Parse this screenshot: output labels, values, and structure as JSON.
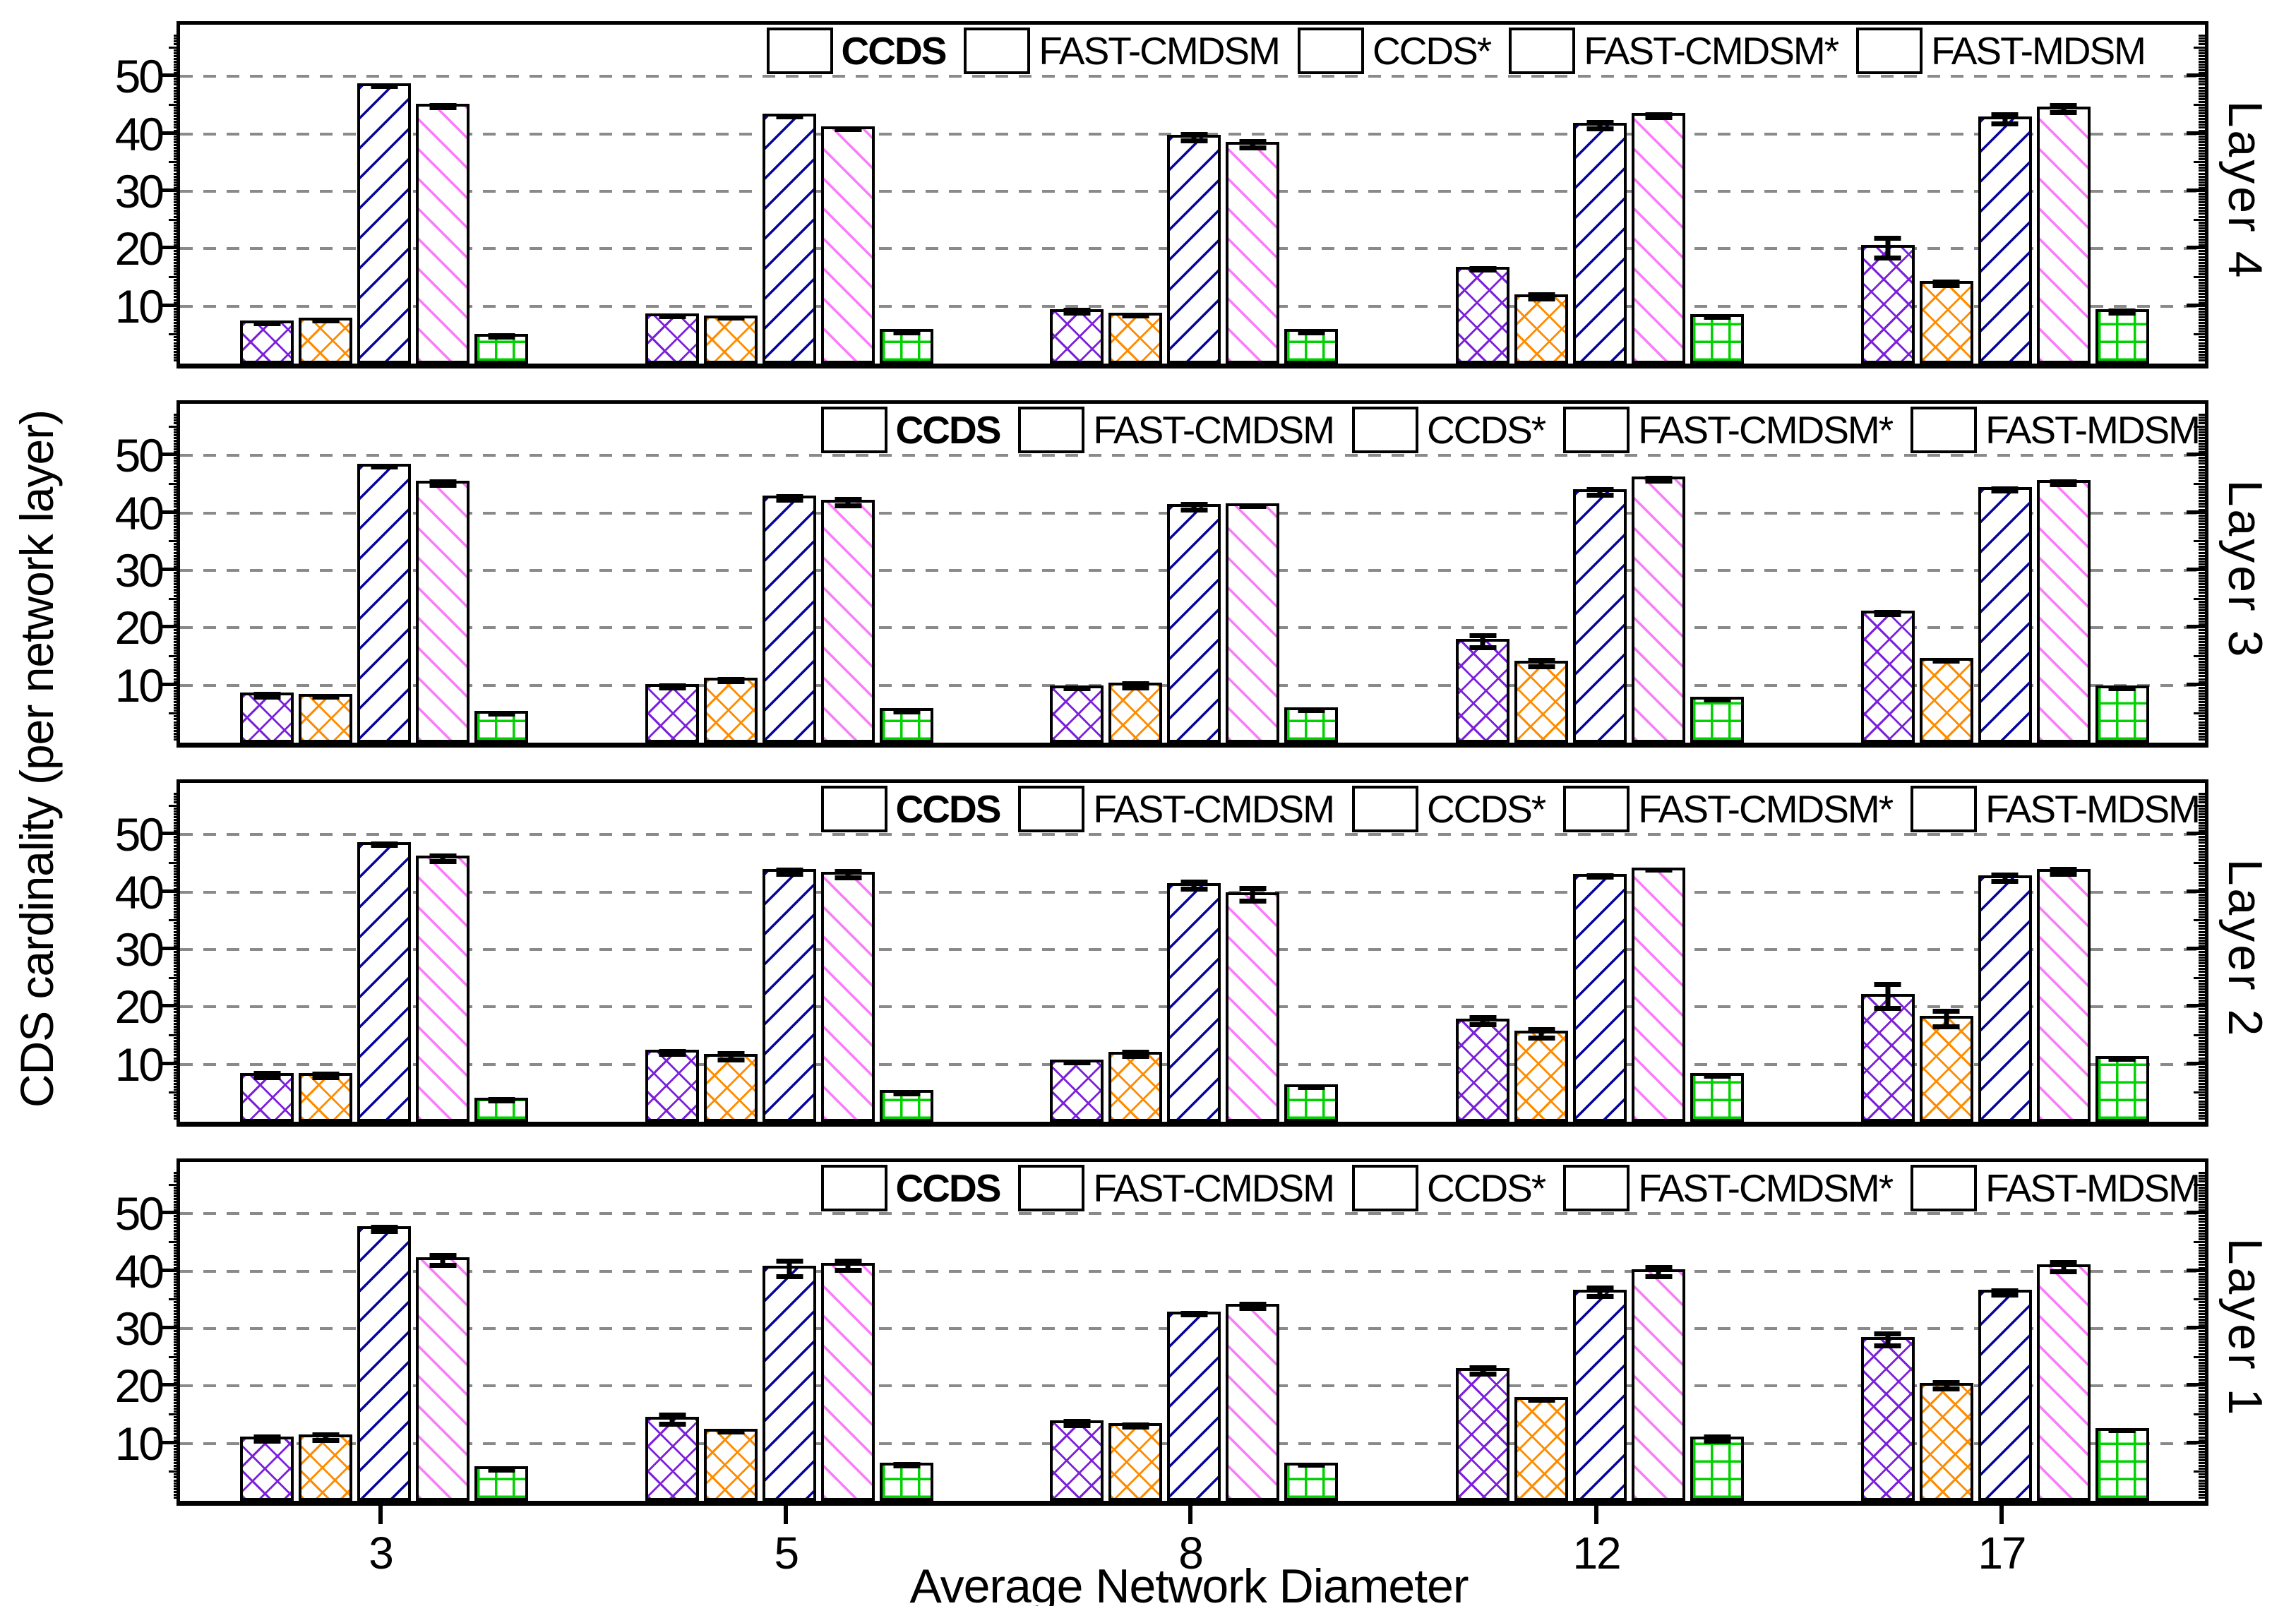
{
  "y_axis": {
    "label": "CDS cardinality (per network layer)",
    "ticks": [
      10,
      20,
      30,
      40,
      50
    ],
    "max": 59
  },
  "x_axis": {
    "label": "Average Network Diameter",
    "categories": [
      "3",
      "5",
      "8",
      "12",
      "17"
    ]
  },
  "legend": {
    "entries": [
      "CCDS",
      "FAST-CMDSM",
      "CCDS*",
      "FAST-CMDSM*",
      "FAST-MDSM"
    ],
    "position": "top-right inside each panel"
  },
  "colors": {
    "ccds": "#7C21DB",
    "fast_cmdsm": "#FF8C00",
    "ccds_star": "#06069C",
    "fast_cmdsm_star": "#FB7BFB",
    "fast_mdsm": "#00D200",
    "gridline": "#8a8a8a",
    "axis": "#000000"
  },
  "chart_data": {
    "type": "bar",
    "title": "",
    "xlabel": "Average Network Diameter",
    "ylabel": "CDS cardinality (per network layer)",
    "x_categories": [
      "3",
      "5",
      "8",
      "12",
      "17"
    ],
    "ylim": [
      0,
      59
    ],
    "yticks": [
      10,
      20,
      30,
      40,
      50
    ],
    "grid": "horizontal-dashed",
    "error_bars": true,
    "series_meta": [
      {
        "name": "CCDS",
        "color": "#7C21DB",
        "pattern": "cross",
        "bold_legend": true
      },
      {
        "name": "FAST-CMDSM",
        "color": "#FF8C00",
        "pattern": "cross",
        "bold_legend": false
      },
      {
        "name": "CCDS*",
        "color": "#06069C",
        "pattern": "diag-up",
        "bold_legend": false
      },
      {
        "name": "FAST-CMDSM*",
        "color": "#FB7BFB",
        "pattern": "diag-down",
        "bold_legend": false
      },
      {
        "name": "FAST-MDSM",
        "color": "#00D200",
        "pattern": "grid",
        "bold_legend": false
      }
    ],
    "panels": [
      {
        "label": "Layer 4",
        "series": [
          {
            "name": "CCDS",
            "values": [
              7.5,
              8.7,
              9.5,
              16.9,
              20.6
            ],
            "errors": [
              0.4,
              0.5,
              0.7,
              0.6,
              2.2
            ]
          },
          {
            "name": "FAST-CMDSM",
            "values": [
              8.0,
              8.4,
              8.9,
              12.1,
              14.4
            ],
            "errors": [
              0.5,
              0.4,
              0.5,
              0.8,
              0.7
            ]
          },
          {
            "name": "CCDS*",
            "values": [
              48.8,
              43.5,
              39.8,
              41.9,
              43.0
            ],
            "errors": [
              0.4,
              0.5,
              1.0,
              1.0,
              1.2
            ]
          },
          {
            "name": "FAST-CMDSM*",
            "values": [
              45.2,
              41.3,
              38.6,
              43.6,
              44.8
            ],
            "errors": [
              0.6,
              0.4,
              1.0,
              0.7,
              1.0
            ]
          },
          {
            "name": "FAST-MDSM",
            "values": [
              5.2,
              6.0,
              6.0,
              8.6,
              9.5
            ],
            "errors": [
              0.3,
              0.3,
              0.3,
              0.5,
              0.6
            ]
          }
        ]
      },
      {
        "label": "Layer 3",
        "series": [
          {
            "name": "CCDS",
            "values": [
              8.7,
              10.2,
              10.0,
              18.1,
              23.0
            ],
            "errors": [
              0.7,
              0.6,
              0.5,
              1.5,
              0.6
            ]
          },
          {
            "name": "FAST-CMDSM",
            "values": [
              8.5,
              11.3,
              10.4,
              14.3,
              14.8
            ],
            "errors": [
              0.5,
              0.6,
              0.8,
              1.0,
              0.5
            ]
          },
          {
            "name": "CCDS*",
            "values": [
              48.6,
              43.0,
              41.5,
              44.1,
              44.5
            ],
            "errors": [
              0.5,
              0.7,
              0.9,
              0.9,
              0.6
            ]
          },
          {
            "name": "FAST-CMDSM*",
            "values": [
              45.6,
              42.3,
              41.7,
              46.3,
              45.7
            ],
            "errors": [
              0.7,
              1.0,
              0.5,
              0.7,
              0.7
            ]
          },
          {
            "name": "FAST-MDSM",
            "values": [
              5.5,
              6.0,
              6.1,
              8.0,
              10.0
            ],
            "errors": [
              0.4,
              0.3,
              0.5,
              0.4,
              0.5
            ]
          }
        ]
      },
      {
        "label": "Layer 2",
        "series": [
          {
            "name": "CCDS",
            "values": [
              8.5,
              12.5,
              10.8,
              18.0,
              22.3
            ],
            "errors": [
              0.8,
              0.7,
              0.4,
              1.0,
              2.5
            ]
          },
          {
            "name": "FAST-CMDSM",
            "values": [
              8.5,
              11.8,
              12.2,
              15.8,
              18.4
            ],
            "errors": [
              0.7,
              1.0,
              0.8,
              1.2,
              1.8
            ]
          },
          {
            "name": "CCDS*",
            "values": [
              48.7,
              44.0,
              41.6,
              43.2,
              42.9
            ],
            "errors": [
              0.3,
              0.8,
              1.0,
              0.5,
              1.0
            ]
          },
          {
            "name": "FAST-CMDSM*",
            "values": [
              46.3,
              43.5,
              40.0,
              44.3,
              44.0
            ],
            "errors": [
              0.9,
              1.0,
              1.5,
              0.4,
              0.9
            ]
          },
          {
            "name": "FAST-MDSM",
            "values": [
              4.2,
              5.5,
              6.5,
              8.5,
              11.4
            ],
            "errors": [
              0.3,
              0.3,
              0.4,
              0.4,
              0.4
            ]
          }
        ]
      },
      {
        "label": "Layer 1",
        "series": [
          {
            "name": "CCDS",
            "values": [
              11.2,
              14.6,
              14.0,
              23.1,
              28.5
            ],
            "errors": [
              0.8,
              1.2,
              0.8,
              1.0,
              1.5
            ]
          },
          {
            "name": "FAST-CMDSM",
            "values": [
              11.5,
              12.5,
              13.5,
              18.1,
              20.5
            ],
            "errors": [
              0.9,
              0.5,
              0.6,
              0.4,
              1.0
            ]
          },
          {
            "name": "CCDS*",
            "values": [
              47.8,
              40.9,
              33.0,
              36.8,
              36.7
            ],
            "errors": [
              0.8,
              1.8,
              0.5,
              1.2,
              0.8
            ]
          },
          {
            "name": "FAST-CMDSM*",
            "values": [
              42.4,
              41.4,
              34.3,
              40.3,
              41.2
            ],
            "errors": [
              1.3,
              1.2,
              0.8,
              1.2,
              1.2
            ]
          },
          {
            "name": "FAST-MDSM",
            "values": [
              6.0,
              6.7,
              6.7,
              11.2,
              12.7
            ],
            "errors": [
              0.3,
              0.3,
              0.4,
              0.8,
              0.4
            ]
          }
        ]
      }
    ]
  }
}
